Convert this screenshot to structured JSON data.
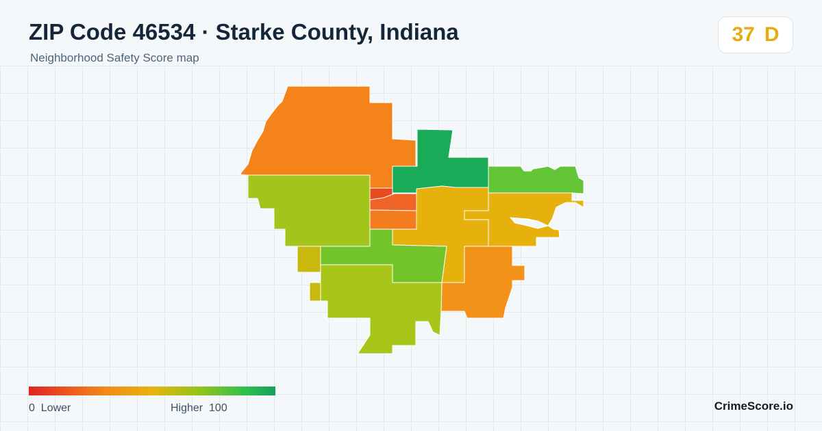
{
  "header": {
    "title": "ZIP Code 46534 · Starke County, Indiana",
    "subtitle": "Neighborhood Safety Score map"
  },
  "score": {
    "value": "37",
    "grade": "D",
    "color": "#e6ab12"
  },
  "legend": {
    "low_value": "0",
    "low_label": "Lower",
    "high_label": "Higher",
    "high_value": "100",
    "colors": [
      "#e02424",
      "#f3851a",
      "#e7b40d",
      "#8fc31a",
      "#2cc04f",
      "#15a05a"
    ]
  },
  "brand": "CrimeScore.io",
  "map": {
    "regions": [
      {
        "name": "northwest-region",
        "color": "#f4841a"
      },
      {
        "name": "west-region",
        "color": "#a3c41a"
      },
      {
        "name": "north-central-region",
        "color": "#1aab58"
      },
      {
        "name": "northeast-region",
        "color": "#62c535"
      },
      {
        "name": "central-small-region",
        "color": "#e84a20"
      },
      {
        "name": "central-downtown-region",
        "color": "#f06427"
      },
      {
        "name": "central-south-region",
        "color": "#f37c20"
      },
      {
        "name": "central-east-region",
        "color": "#e6b10c"
      },
      {
        "name": "east-region",
        "color": "#e6b10c"
      },
      {
        "name": "south-central-region",
        "color": "#72c42a"
      },
      {
        "name": "southeast-region",
        "color": "#f39219"
      },
      {
        "name": "south-region",
        "color": "#a8c51a"
      },
      {
        "name": "southwest-piece-a",
        "color": "#c9b80e"
      },
      {
        "name": "southwest-piece-b",
        "color": "#c9b80e"
      }
    ]
  }
}
